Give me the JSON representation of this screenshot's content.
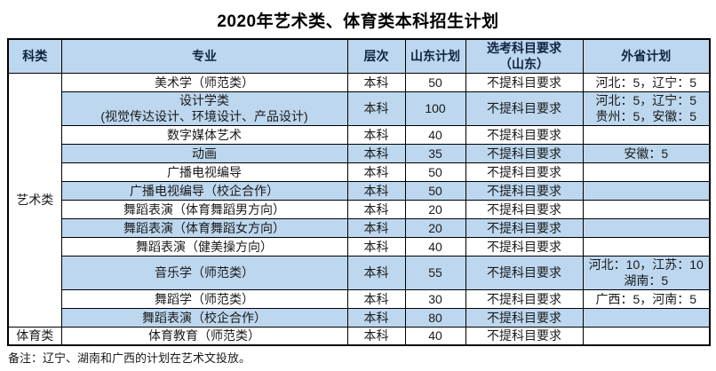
{
  "title": "2020年艺术类、体育类本科招生计划",
  "colors": {
    "header_and_band_blue": "#bdd7ee",
    "border": "#000000",
    "background": "#ffffff",
    "text": "#1a1a1a"
  },
  "table": {
    "headers": [
      "科类",
      "专业",
      "层次",
      "山东计划",
      "选考科目要求\n（山东）",
      "外省计划"
    ],
    "rows": [
      {
        "category": {
          "label": "艺术类",
          "rowspan": 12
        },
        "major": "美术学（师范类）",
        "level": "本科",
        "shandong": "50",
        "subject": "不提科目要求",
        "other": "河北：5，辽宁：5",
        "shaded": false
      },
      {
        "major": "设计学类\n(视觉传达设计、环境设计、产品设计)",
        "level": "本科",
        "shandong": "100",
        "subject": "不提科目要求",
        "other": "河北：5，辽宁：5\n贵州：5，安徽：5",
        "shaded": true
      },
      {
        "major": "数字媒体艺术",
        "level": "本科",
        "shandong": "40",
        "subject": "不提科目要求",
        "other": "",
        "shaded": false
      },
      {
        "major": "动画",
        "level": "本科",
        "shandong": "35",
        "subject": "不提科目要求",
        "other": "安徽：5",
        "shaded": true
      },
      {
        "major": "广播电视编导",
        "level": "本科",
        "shandong": "50",
        "subject": "不提科目要求",
        "other": "",
        "shaded": false
      },
      {
        "major": "广播电视编导（校企合作）",
        "level": "本科",
        "shandong": "50",
        "subject": "不提科目要求",
        "other": "",
        "shaded": true
      },
      {
        "major": "舞蹈表演（体育舞蹈男方向）",
        "level": "本科",
        "shandong": "20",
        "subject": "不提科目要求",
        "other": "",
        "shaded": false
      },
      {
        "major": "舞蹈表演（体育舞蹈女方向）",
        "level": "本科",
        "shandong": "20",
        "subject": "不提科目要求",
        "other": "",
        "shaded": true
      },
      {
        "major": "舞蹈表演（健美操方向）",
        "level": "本科",
        "shandong": "40",
        "subject": "不提科目要求",
        "other": "",
        "shaded": false
      },
      {
        "major": "音乐学（师范类）",
        "level": "本科",
        "shandong": "55",
        "subject": "不提科目要求",
        "other": "河北：10，江苏：10\n湖南：5",
        "shaded": true
      },
      {
        "major": "舞蹈学（师范类）",
        "level": "本科",
        "shandong": "30",
        "subject": "不提科目要求",
        "other": "广西：5，河南：5",
        "shaded": false
      },
      {
        "major": "舞蹈表演（校企合作）",
        "level": "本科",
        "shandong": "80",
        "subject": "不提科目要求",
        "other": "",
        "shaded": true
      },
      {
        "category": {
          "label": "体育类",
          "rowspan": 1
        },
        "major": "体育教育（师范类）",
        "level": "本科",
        "shandong": "40",
        "subject": "不提科目要求",
        "other": "",
        "shaded": false
      }
    ]
  },
  "note": "备注：辽宁、湖南和广西的计划在艺术文投放。"
}
